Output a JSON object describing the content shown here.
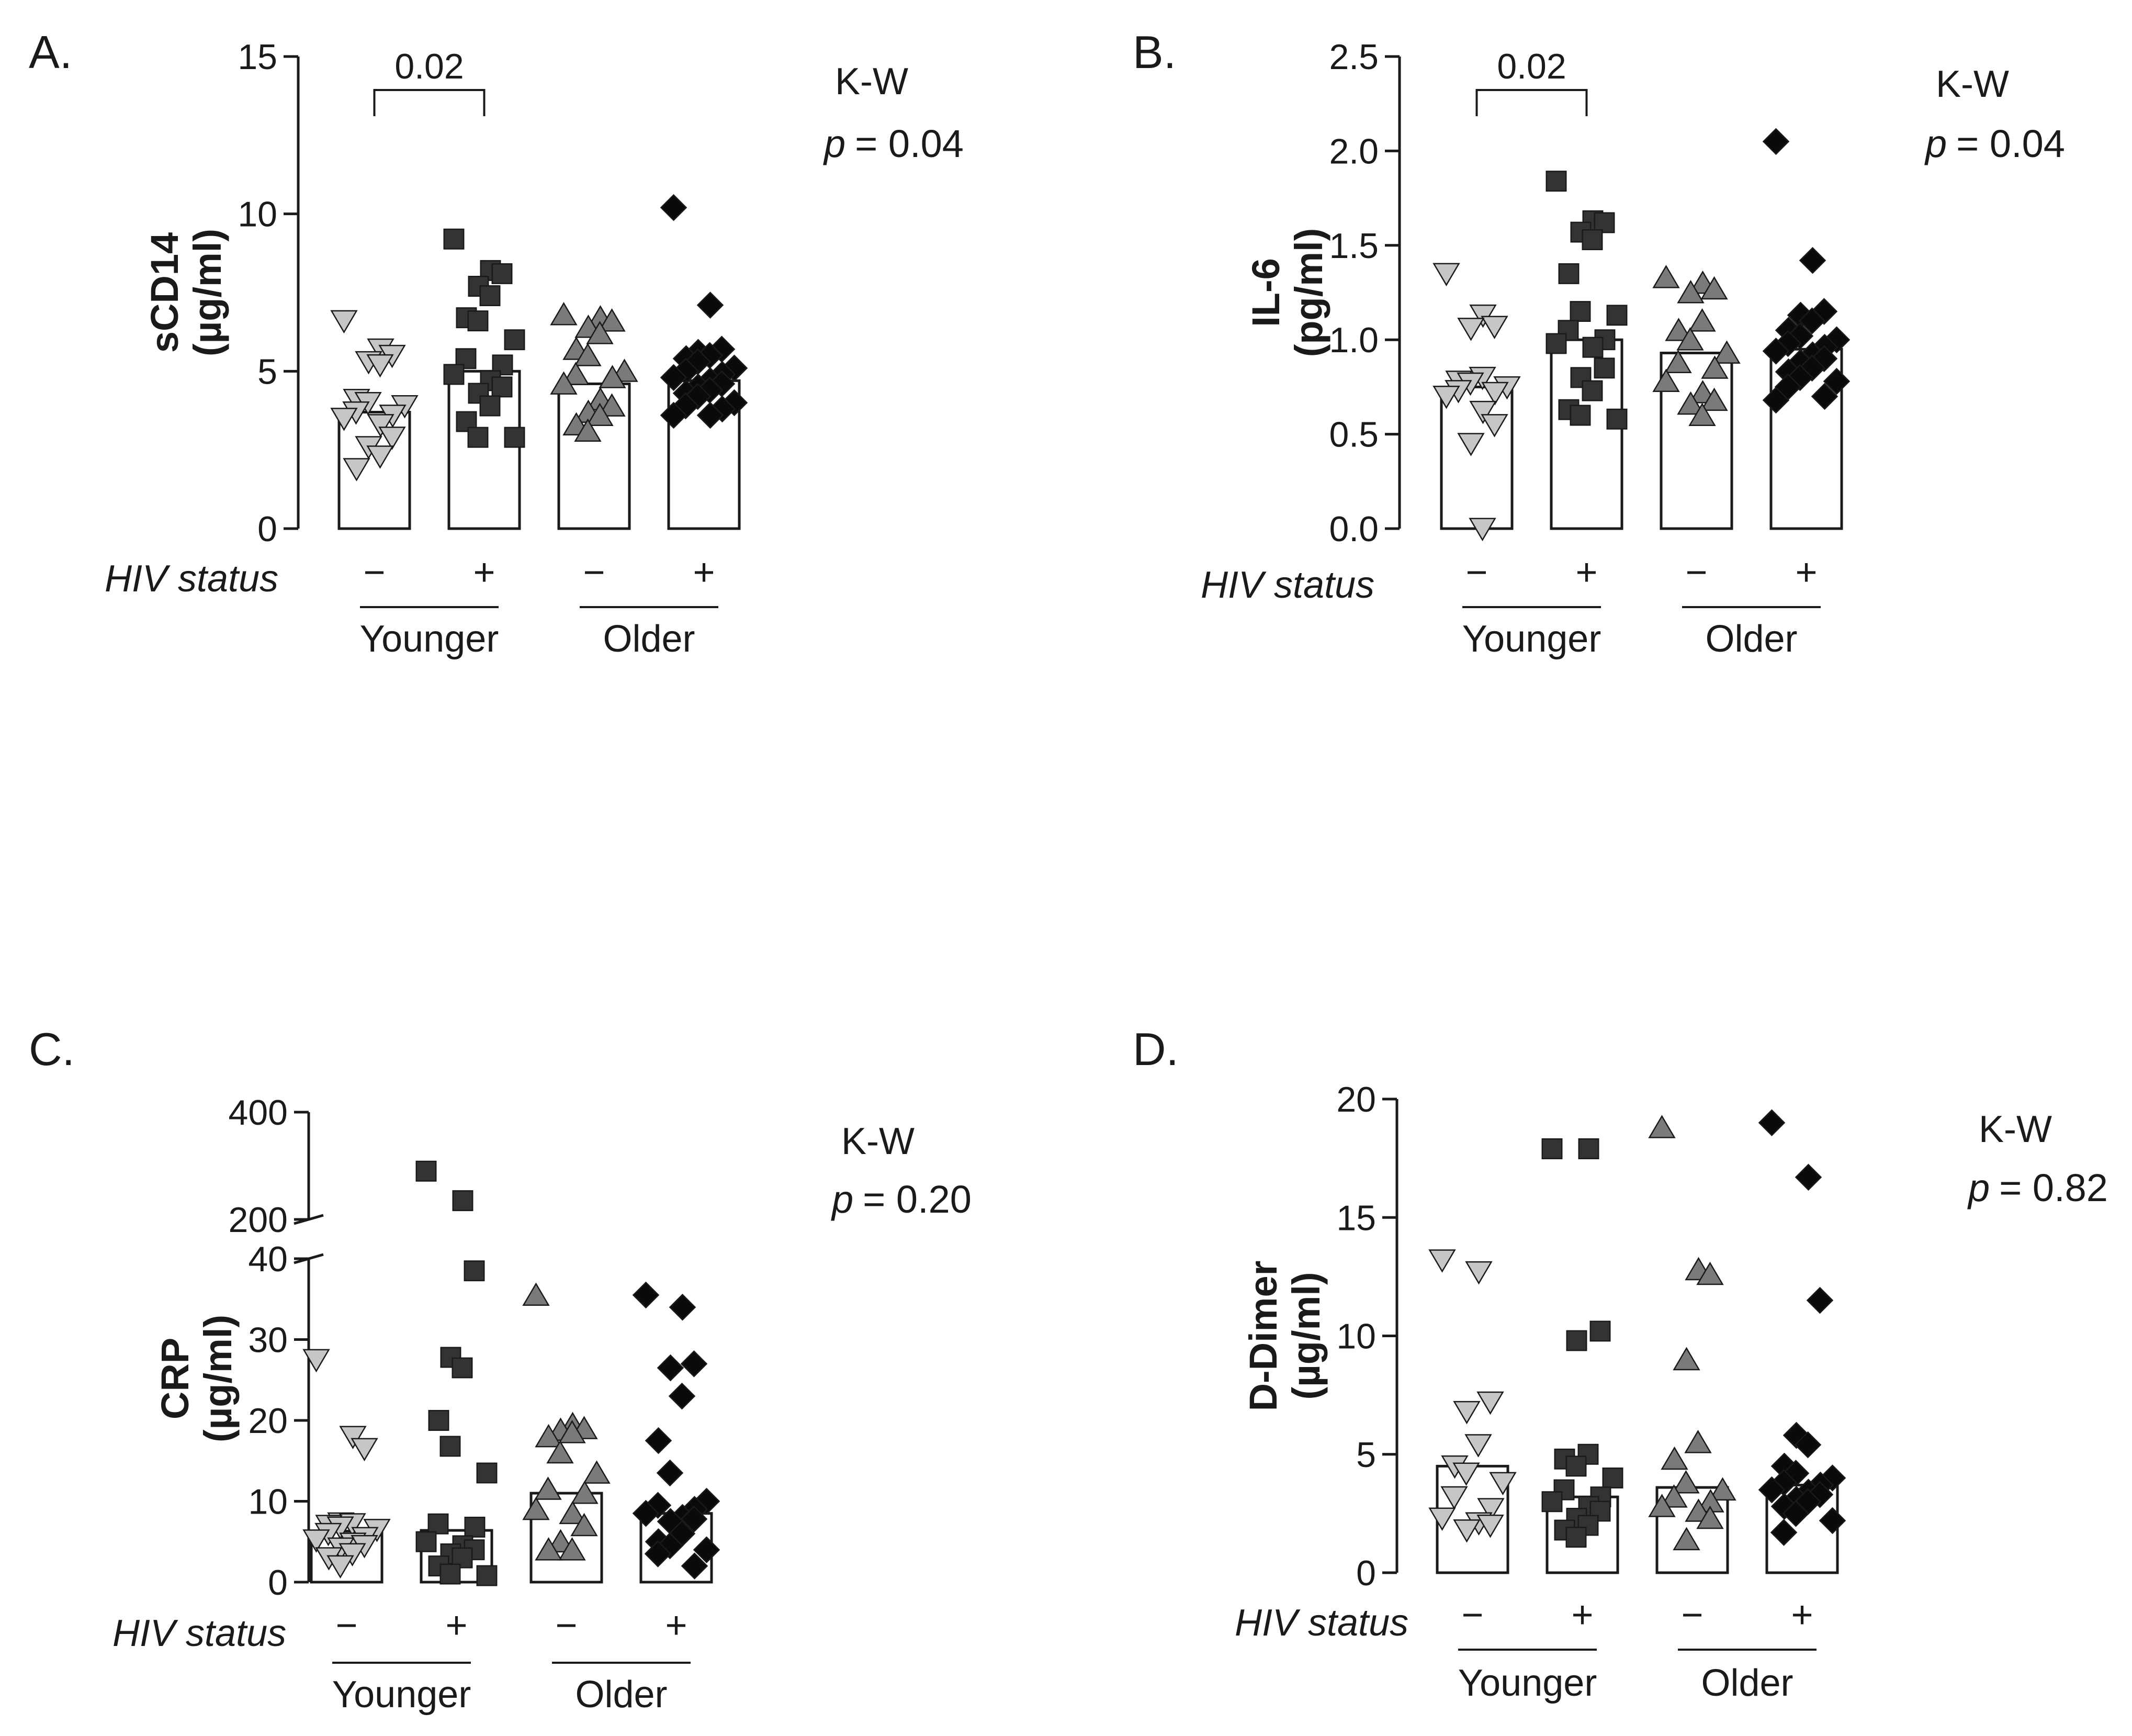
{
  "chart_data": [
    {
      "type": "bar",
      "panel": "A.",
      "ylabel_lines": [
        "sCD14",
        "(µg/ml)"
      ],
      "ylim": [
        0,
        15
      ],
      "yticks": [
        0,
        5,
        10,
        15
      ],
      "ytick_labels": [
        "0",
        "5",
        "10",
        "15"
      ],
      "hiv_status_label": "HIV status",
      "hiv_signs": [
        "−",
        "+",
        "−",
        "+"
      ],
      "groups": [
        "Younger",
        "Older"
      ],
      "bracket": {
        "from": 0,
        "to": 1,
        "label": "0.02"
      },
      "kw_label": "K-W",
      "p_label": "p",
      "p_value": "= 0.04",
      "bars": [
        {
          "name": "Younger HIV−",
          "marker": "triangle-down",
          "color": "#c6c6c6",
          "value": 3.7,
          "points": [
            6.6,
            5.7,
            5.5,
            5.3,
            5.2,
            4.1,
            4.0,
            3.9,
            3.7,
            3.6,
            3.5,
            3.3,
            2.9,
            2.6,
            2.3,
            1.9
          ]
        },
        {
          "name": "Younger HIV+",
          "marker": "square",
          "color": "#333333",
          "value": 5.0,
          "points": [
            9.2,
            8.2,
            8.1,
            7.7,
            7.4,
            6.7,
            6.6,
            6.0,
            5.4,
            5.2,
            4.9,
            4.7,
            4.5,
            4.3,
            3.9,
            3.4,
            2.9,
            2.9
          ]
        },
        {
          "name": "Older HIV−",
          "marker": "triangle-up",
          "color": "#7a7a7a",
          "value": 4.6,
          "points": [
            6.8,
            6.7,
            6.6,
            6.4,
            6.2,
            5.7,
            5.5,
            5.0,
            4.9,
            4.8,
            4.6,
            4.1,
            3.9,
            3.7,
            3.6,
            3.3,
            3.1
          ]
        },
        {
          "name": "Older HIV+",
          "marker": "diamond",
          "color": "#0a0a0a",
          "value": 4.7,
          "points": [
            10.2,
            7.1,
            5.7,
            5.6,
            5.5,
            5.4,
            5.3,
            5.1,
            5.0,
            4.9,
            4.8,
            4.7,
            4.6,
            4.5,
            4.4,
            4.3,
            4.2,
            4.0,
            3.9,
            3.8,
            3.6,
            3.6
          ]
        }
      ]
    },
    {
      "type": "bar",
      "panel": "B.",
      "ylabel_lines": [
        "IL-6",
        "(pg/ml)"
      ],
      "ylim": [
        0,
        2.5
      ],
      "yticks": [
        0,
        0.5,
        1.0,
        1.5,
        2.0,
        2.5
      ],
      "ytick_labels": [
        "0.0",
        "0.5",
        "1.0",
        "1.5",
        "2.0",
        "2.5"
      ],
      "hiv_status_label": "HIV status",
      "hiv_signs": [
        "−",
        "+",
        "−",
        "+"
      ],
      "groups": [
        "Younger",
        "Older"
      ],
      "bracket": {
        "from": 0,
        "to": 1,
        "label": "0.02"
      },
      "kw_label": "K-W",
      "p_label": "p",
      "p_value": "= 0.04",
      "bars": [
        {
          "name": "Younger HIV−",
          "marker": "triangle-down",
          "color": "#c6c6c6",
          "value": 0.75,
          "points": [
            1.35,
            1.13,
            1.07,
            1.06,
            0.8,
            0.78,
            0.77,
            0.75,
            0.73,
            0.72,
            0.7,
            0.62,
            0.55,
            0.45,
            0.0
          ]
        },
        {
          "name": "Younger HIV+",
          "marker": "square",
          "color": "#333333",
          "value": 1.0,
          "points": [
            1.84,
            1.63,
            1.62,
            1.57,
            1.53,
            1.35,
            1.15,
            1.13,
            1.05,
            1.0,
            0.98,
            0.96,
            0.85,
            0.8,
            0.73,
            0.63,
            0.6,
            0.58
          ]
        },
        {
          "name": "Older HIV−",
          "marker": "triangle-up",
          "color": "#7a7a7a",
          "value": 0.93,
          "points": [
            1.33,
            1.3,
            1.27,
            1.25,
            1.1,
            1.05,
            1.0,
            0.93,
            0.88,
            0.85,
            0.78,
            0.72,
            0.68,
            0.66,
            0.6
          ]
        },
        {
          "name": "Older HIV+",
          "marker": "diamond",
          "color": "#0a0a0a",
          "value": 0.95,
          "points": [
            2.05,
            1.42,
            1.15,
            1.13,
            1.1,
            1.05,
            1.02,
            1.0,
            0.98,
            0.96,
            0.94,
            0.92,
            0.9,
            0.88,
            0.85,
            0.83,
            0.8,
            0.78,
            0.75,
            0.7,
            0.68
          ]
        }
      ]
    },
    {
      "type": "bar",
      "panel": "C.",
      "ylabel_lines": [
        "CRP",
        "(µg/ml)"
      ],
      "ylim": [
        0,
        40
      ],
      "upper_ylim": [
        200,
        400
      ],
      "yticks": [
        0,
        10,
        20,
        30,
        40
      ],
      "ytick_labels": [
        "0",
        "10",
        "20",
        "30",
        "40"
      ],
      "upper_yticks": [
        200,
        400
      ],
      "upper_ytick_labels": [
        "200",
        "400"
      ],
      "hiv_status_label": "HIV status",
      "hiv_signs": [
        "−",
        "+",
        "−",
        "+"
      ],
      "groups": [
        "Younger",
        "Older"
      ],
      "kw_label": "K-W",
      "p_label": "p",
      "p_value": "= 0.20",
      "bars": [
        {
          "name": "Younger HIV−",
          "marker": "triangle-down",
          "color": "#c6c6c6",
          "value": 6.3,
          "points": [
            27.5,
            18.0,
            16.5,
            7.3,
            7.2,
            7.0,
            6.8,
            6.5,
            6.0,
            5.5,
            5.2,
            4.8,
            4.5,
            4.2,
            3.5,
            3.0,
            2.0
          ]
        },
        {
          "name": "Younger HIV+",
          "marker": "square",
          "color": "#333333",
          "value": 6.4,
          "points": [
            290,
            235,
            38.5,
            27.8,
            26.5,
            20.0,
            16.8,
            13.5,
            7.2,
            6.8,
            5.0,
            4.5,
            4.0,
            3.5,
            3.0,
            2.0,
            1.0,
            0.8
          ]
        },
        {
          "name": "Older HIV−",
          "marker": "triangle-up",
          "color": "#7a7a7a",
          "value": 11.0,
          "points": [
            35.5,
            19.5,
            19.0,
            18.8,
            18.5,
            18.0,
            16.0,
            13.5,
            11.5,
            11.0,
            9.0,
            8.5,
            7.0,
            5.0,
            4.0,
            4.0
          ]
        },
        {
          "name": "Older HIV+",
          "marker": "diamond",
          "color": "#0a0a0a",
          "value": 8.5,
          "points": [
            35.5,
            34.0,
            27.0,
            26.5,
            23.0,
            17.5,
            13.5,
            10.0,
            9.5,
            9.0,
            8.5,
            8.0,
            7.8,
            7.5,
            6.0,
            5.0,
            4.5,
            4.0,
            3.5,
            2.0
          ]
        }
      ]
    },
    {
      "type": "bar",
      "panel": "D.",
      "ylabel_lines": [
        "D-Dimer",
        "(µg/ml)"
      ],
      "ylim": [
        0,
        20
      ],
      "yticks": [
        0,
        5,
        10,
        15,
        20
      ],
      "ytick_labels": [
        "0",
        "5",
        "10",
        "15",
        "20"
      ],
      "hiv_status_label": "HIV status",
      "hiv_signs": [
        "−",
        "+",
        "−",
        "+"
      ],
      "groups": [
        "Younger",
        "Older"
      ],
      "kw_label": "K-W",
      "p_label": "p",
      "p_value": "= 0.82",
      "bars": [
        {
          "name": "Younger HIV−",
          "marker": "triangle-down",
          "color": "#c6c6c6",
          "value": 4.5,
          "points": [
            13.2,
            12.7,
            7.2,
            6.8,
            5.4,
            4.5,
            4.2,
            3.8,
            3.2,
            2.7,
            2.3,
            2.1,
            2.0,
            1.8
          ]
        },
        {
          "name": "Younger HIV+",
          "marker": "square",
          "color": "#333333",
          "value": 3.2,
          "points": [
            17.9,
            17.9,
            10.2,
            9.8,
            5.0,
            4.8,
            4.5,
            4.0,
            3.5,
            3.2,
            3.0,
            2.8,
            2.6,
            2.3,
            2.0,
            1.8,
            1.5
          ]
        },
        {
          "name": "Older HIV−",
          "marker": "triangle-up",
          "color": "#7a7a7a",
          "value": 3.6,
          "points": [
            18.8,
            12.8,
            12.6,
            9.0,
            5.5,
            4.8,
            3.8,
            3.5,
            3.2,
            3.0,
            2.8,
            2.6,
            2.3,
            1.4
          ]
        },
        {
          "name": "Older HIV+",
          "marker": "diamond",
          "color": "#0a0a0a",
          "value": 3.7,
          "points": [
            19.0,
            16.7,
            11.5,
            5.8,
            5.4,
            4.5,
            4.2,
            4.0,
            3.8,
            3.7,
            3.5,
            3.4,
            3.3,
            3.1,
            3.0,
            2.8,
            2.5,
            2.2,
            1.7
          ]
        }
      ]
    }
  ]
}
